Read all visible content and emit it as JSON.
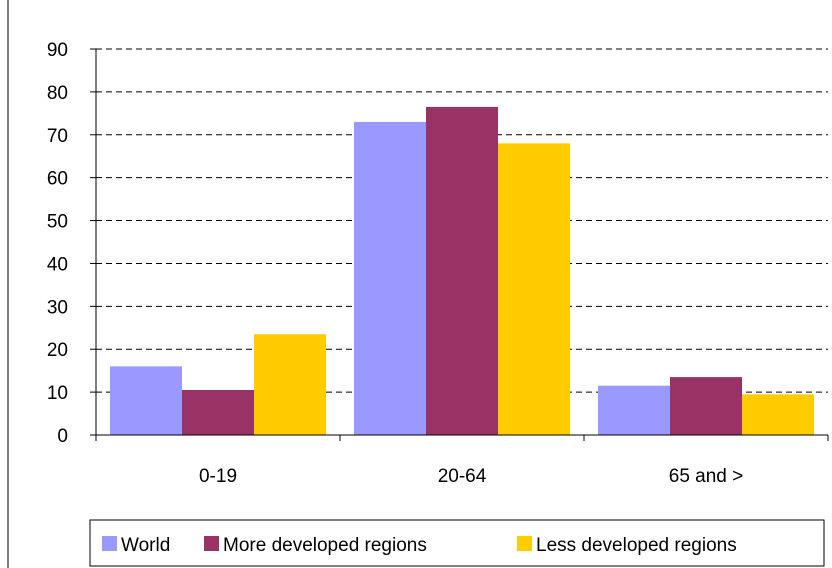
{
  "chart_data": {
    "type": "bar",
    "categories": [
      "0-19",
      "20-64",
      "65 and >"
    ],
    "series": [
      {
        "name": "World",
        "values": [
          16,
          73,
          11.5
        ],
        "color": "#9999ff"
      },
      {
        "name": "More developed regions",
        "values": [
          10.5,
          76.5,
          13.5
        ],
        "color": "#993366"
      },
      {
        "name": "Less developed regions",
        "values": [
          23.5,
          68,
          9.5
        ],
        "color": "#ffcc00"
      }
    ],
    "title": "",
    "xlabel": "",
    "ylabel": "",
    "ylim": [
      0,
      90
    ],
    "yticks": [
      "0",
      "10",
      "20",
      "30",
      "40",
      "50",
      "60",
      "70",
      "80",
      "90"
    ],
    "grid": "horizontal-dashed",
    "legend": "bottom"
  }
}
